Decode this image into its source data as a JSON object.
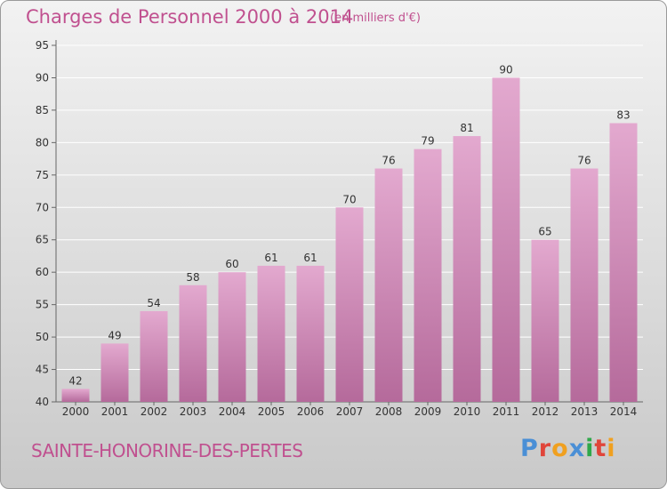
{
  "header": {
    "title": "Charges de Personnel 2000 à 2014",
    "subtitle": "(en milliers d'€)"
  },
  "footer": {
    "place": "SAINTE-HONORINE-DES-PERTES",
    "logo": "Proxiti"
  },
  "colors": {
    "accent": "#c0508f",
    "bar_top": "#e3a9cf",
    "bar_bottom": "#b56a9b",
    "logo_letters": [
      "#4a8fd6",
      "#e0453a",
      "#f0a020",
      "#4a8fd6",
      "#2fa84a",
      "#e0453a",
      "#f0a020"
    ]
  },
  "chart_data": {
    "type": "bar",
    "categories": [
      "2000",
      "2001",
      "2002",
      "2003",
      "2004",
      "2005",
      "2006",
      "2007",
      "2008",
      "2009",
      "2010",
      "2011",
      "2012",
      "2013",
      "2014"
    ],
    "values": [
      42,
      49,
      54,
      58,
      60,
      61,
      61,
      70,
      76,
      79,
      81,
      90,
      65,
      76,
      83
    ],
    "title": "Charges de Personnel 2000 à 2014",
    "subtitle": "(en milliers d'€)",
    "xlabel": "",
    "ylabel": "",
    "ylim": [
      40,
      95
    ],
    "yticks": [
      40,
      45,
      50,
      55,
      60,
      65,
      70,
      75,
      80,
      85,
      90,
      95
    ],
    "grid": true,
    "legend": "none"
  }
}
